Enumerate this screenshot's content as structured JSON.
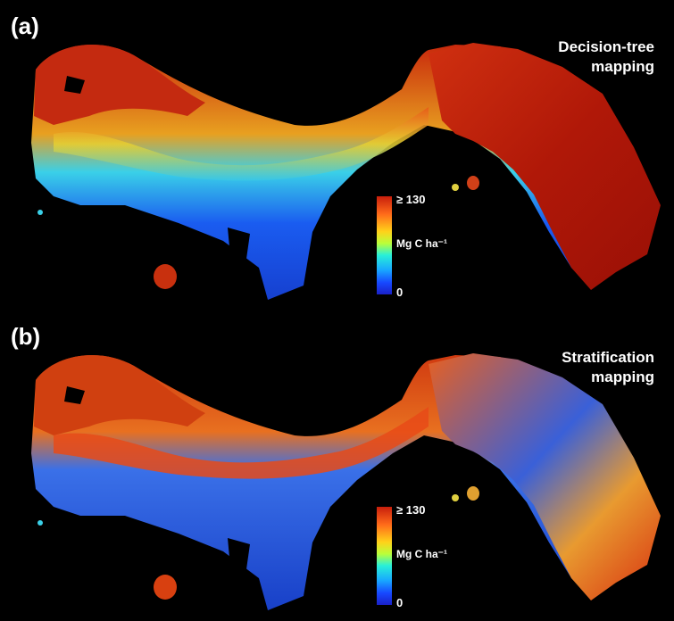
{
  "panels": [
    {
      "letter": "(a)",
      "title_line1": "Decision-tree",
      "title_line2": "mapping"
    },
    {
      "letter": "(b)",
      "title_line1": "Stratification",
      "title_line2": "mapping"
    }
  ],
  "legend": {
    "max_label": "≥ 130",
    "unit_label": "Mg C ha⁻¹",
    "min_label": "0",
    "colors": [
      "#c81e0c",
      "#ff6a1a",
      "#ffd21a",
      "#baff3a",
      "#28f0d8",
      "#18a8ff",
      "#1748ff",
      "#1a20c8"
    ]
  },
  "colors": {
    "background": "#000000",
    "high_carbon": "#c01a0a",
    "mid_carbon": "#f0d020",
    "low_carbon": "#1848e0"
  }
}
